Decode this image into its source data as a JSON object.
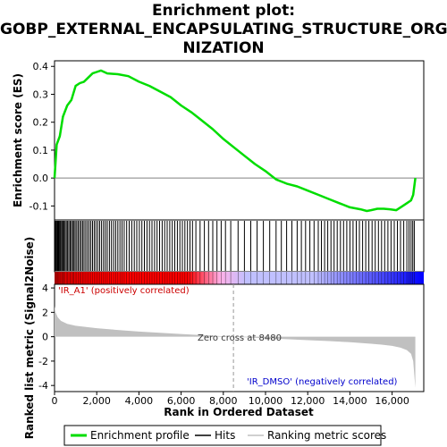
{
  "title_lines": [
    "Enrichment plot:",
    "GOBP_EXTERNAL_ENCAPSULATING_STRUCTURE_ORGA",
    "NIZATION"
  ],
  "chart_data": {
    "type": "line",
    "title": "Enrichment plot: GOBP_EXTERNAL_ENCAPSULATING_STRUCTURE_ORGANIZATION",
    "xlabel": "Rank in Ordered Dataset",
    "xlim": [
      0,
      17500
    ],
    "x_ticks": [
      0,
      2000,
      4000,
      6000,
      8000,
      10000,
      12000,
      14000,
      16000
    ],
    "x_tick_labels": [
      "0",
      "2,000",
      "4,000",
      "6,000",
      "8,000",
      "10,000",
      "12,000",
      "14,000",
      "16,000"
    ],
    "es_panel": {
      "ylabel": "Enrichment score (ES)",
      "ylim": [
        -0.15,
        0.42
      ],
      "y_ticks": [
        -0.1,
        0.0,
        0.1,
        0.2,
        0.3,
        0.4
      ],
      "y_tick_labels": [
        "-0.1",
        "0.0",
        "0.1",
        "0.2",
        "0.3",
        "0.4"
      ],
      "color": "#00dd00",
      "series": [
        {
          "name": "Enrichment profile",
          "x": [
            0,
            100,
            250,
            400,
            600,
            800,
            1000,
            1200,
            1400,
            1600,
            1800,
            2000,
            2200,
            2500,
            3000,
            3500,
            4000,
            4500,
            5000,
            5500,
            6000,
            6500,
            7000,
            7500,
            8000,
            8500,
            9000,
            9500,
            10000,
            10500,
            11000,
            11500,
            12000,
            12500,
            13000,
            13500,
            14000,
            14500,
            14800,
            15000,
            15300,
            15600,
            15900,
            16200,
            16500,
            16700,
            16900,
            17000,
            17100
          ],
          "y": [
            0.0,
            0.12,
            0.15,
            0.22,
            0.26,
            0.28,
            0.33,
            0.34,
            0.345,
            0.36,
            0.375,
            0.38,
            0.385,
            0.375,
            0.372,
            0.365,
            0.345,
            0.33,
            0.31,
            0.29,
            0.26,
            0.235,
            0.205,
            0.175,
            0.14,
            0.11,
            0.08,
            0.05,
            0.025,
            -0.005,
            -0.02,
            -0.03,
            -0.045,
            -0.06,
            -0.075,
            -0.09,
            -0.105,
            -0.112,
            -0.118,
            -0.115,
            -0.11,
            -0.11,
            -0.112,
            -0.115,
            -0.1,
            -0.09,
            -0.08,
            -0.06,
            0.0
          ]
        }
      ]
    },
    "hits_panel": {
      "color": "#000000",
      "hit_ranks": [
        20,
        50,
        90,
        130,
        170,
        210,
        260,
        300,
        350,
        400,
        450,
        500,
        560,
        620,
        680,
        740,
        800,
        860,
        920,
        980,
        1050,
        1120,
        1190,
        1260,
        1330,
        1400,
        1480,
        1560,
        1640,
        1720,
        1800,
        1880,
        1960,
        2050,
        2140,
        2230,
        2320,
        2410,
        2500,
        2600,
        2700,
        2800,
        2900,
        3000,
        3100,
        3200,
        3300,
        3420,
        3540,
        3660,
        3780,
        3900,
        4020,
        4140,
        4260,
        4380,
        4500,
        4620,
        4740,
        4860,
        4980,
        5100,
        5220,
        5340,
        5460,
        5580,
        5700,
        5820,
        5940,
        6060,
        6180,
        6300,
        6420,
        6540,
        6700,
        6900,
        7100,
        7300,
        7500,
        7700,
        7900,
        8100,
        8350,
        8700,
        9000,
        9300,
        9600,
        9900,
        10200,
        10500,
        10750,
        11000,
        11250,
        11500,
        11700,
        11900,
        12100,
        12300,
        12500,
        12650,
        12800,
        12950,
        13100,
        13250,
        13400,
        13550,
        13700,
        13850,
        14000,
        14150,
        14300,
        14450,
        14600,
        14750,
        14900,
        15050,
        15200,
        15350,
        15500,
        15650,
        15800,
        15950,
        16100,
        16250,
        16400,
        16550,
        16700,
        16800,
        16900,
        16980,
        17050
      ]
    },
    "metric_panel": {
      "ylabel": "Ranked list metric (Signal2Noise)",
      "ylim": [
        -4.5,
        4.3
      ],
      "y_ticks": [
        -4,
        -2,
        0,
        2,
        4
      ],
      "y_tick_labels": [
        "-4",
        "-2",
        "0",
        "2",
        "4"
      ],
      "fill_color": "#c0c0c0",
      "series": [
        {
          "name": "Ranking metric scores",
          "x": [
            0,
            50,
            150,
            300,
            600,
            1000,
            2000,
            3000,
            4000,
            5000,
            6000,
            7000,
            8000,
            8480,
            9000,
            10000,
            11000,
            12000,
            13000,
            14000,
            15000,
            15500,
            16000,
            16400,
            16700,
            16900,
            17000,
            17100
          ],
          "y": [
            2.5,
            2.0,
            1.6,
            1.3,
            1.05,
            0.9,
            0.7,
            0.55,
            0.42,
            0.32,
            0.22,
            0.13,
            0.04,
            0.0,
            -0.05,
            -0.13,
            -0.2,
            -0.28,
            -0.36,
            -0.45,
            -0.58,
            -0.65,
            -0.75,
            -0.9,
            -1.1,
            -1.4,
            -2.0,
            -4.2
          ]
        }
      ],
      "zero_cross_rank": 8480,
      "zero_cross_label": "Zero cross at 8480",
      "pos_label": "'IR_A1' (positively correlated)",
      "neg_label": "'IR_DMSO' (negatively correlated)",
      "pos_label_color": "#cc0000",
      "neg_label_color": "#0000cc"
    },
    "gradient_colors": [
      "#ff0000",
      "#ffb0e8",
      "#c0c0ff",
      "#0000ff"
    ],
    "legend": {
      "placement": "bottom",
      "entries": [
        {
          "label": "Enrichment profile",
          "color": "#00dd00"
        },
        {
          "label": "Hits",
          "color": "#000000"
        },
        {
          "label": "Ranking metric scores",
          "color": "#c0c0c0"
        }
      ]
    }
  }
}
